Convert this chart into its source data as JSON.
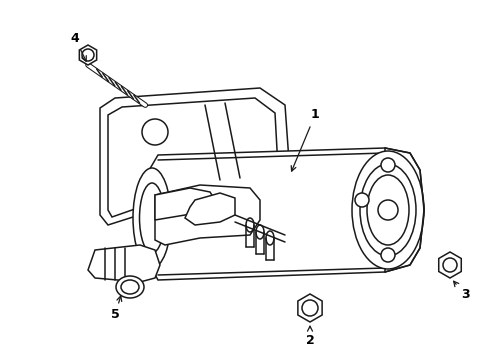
{
  "background_color": "#ffffff",
  "line_color": "#1a1a1a",
  "label_color": "#000000",
  "line_width": 1.1,
  "figsize": [
    4.89,
    3.6
  ],
  "dpi": 100
}
